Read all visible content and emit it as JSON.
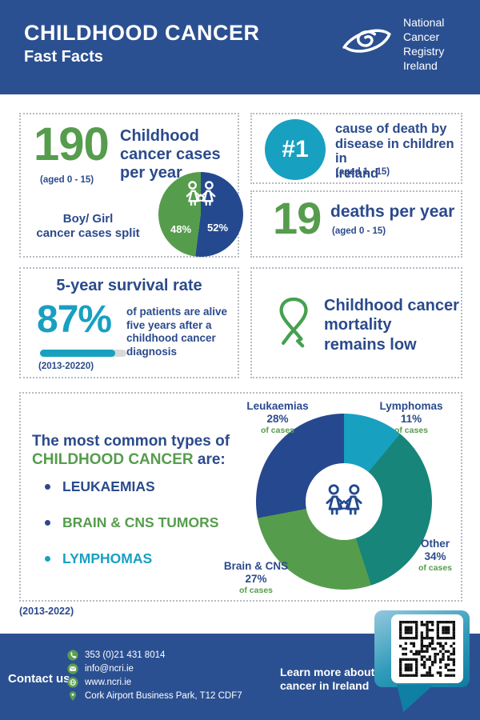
{
  "colors": {
    "header_bg": "#2b5091",
    "navy_text": "#2b4a8c",
    "green": "#569c4d",
    "teal": "#18a0c1",
    "dark_teal": "#17857a",
    "donut_navy": "#26488e",
    "progress_track": "#d9d9d9"
  },
  "header": {
    "title": "CHILDHOOD CANCER",
    "subtitle": "Fast Facts",
    "logo_text": "National\nCancer\nRegistry\nIreland"
  },
  "cases_box": {
    "value": "190",
    "age_note": "(aged 0 - 15)",
    "label": "Childhood\ncancer cases\nper year",
    "split_label": "Boy/ Girl\ncancer cases split"
  },
  "cause_box": {
    "rank": "#1",
    "label": "cause of death by\ndisease in children in\nIreland",
    "age_note": "(aged 1 - 15)"
  },
  "deaths_box": {
    "value": "19",
    "label": "deaths per year",
    "age_note": "(aged 0 - 15)"
  },
  "survival_box": {
    "title": "5-year survival rate",
    "value": "87%",
    "pct": 87,
    "description": "of patients are alive\nfive years after a\nchildhood cancer\ndiagnosis",
    "period": "(2013-20220)"
  },
  "mortality_box": {
    "label": "Childhood cancer\nmortality\nremains low"
  },
  "types_box": {
    "intro_line1": "The most common types of",
    "intro_highlight": "CHILDHOOD CANCER",
    "intro_suffix": " are:",
    "bullets": [
      {
        "label": "LEUKAEMIAS",
        "color": "#2b4a8c"
      },
      {
        "label": "BRAIN & CNS TUMORS",
        "color": "#569c4d"
      },
      {
        "label": "LYMPHOMAS",
        "color": "#18a0c1"
      }
    ],
    "period": "(2013-2022)"
  },
  "chart_data": [
    {
      "type": "pie",
      "title": "Boy/ Girl cancer cases split",
      "from_deg": 187.2,
      "slices": [
        {
          "pct": "48%",
          "value": 48,
          "color": "#569c4d"
        },
        {
          "pct": "52%",
          "value": 52,
          "color": "#24498f"
        }
      ]
    },
    {
      "type": "donut",
      "title": "The most common types of childhood cancer",
      "period": "(2013-2022)",
      "from_deg": 0,
      "direction": "clockwise-from-top",
      "center_icon": "children-icon",
      "slices": [
        {
          "label": "Lymphomas",
          "pct": "11%",
          "value": 11,
          "color": "#18a0c1",
          "note": "of cases"
        },
        {
          "label": "Other",
          "pct": "34%",
          "value": 34,
          "color": "#17857a",
          "note": "of cases"
        },
        {
          "label": "Brain & CNS",
          "pct": "27%",
          "value": 27,
          "color": "#569c4d",
          "note": "of cases"
        },
        {
          "label": "Leukaemias",
          "pct": "28%",
          "value": 28,
          "color": "#26488e",
          "note": "of cases"
        }
      ]
    }
  ],
  "footer": {
    "contact_label": "Contact us",
    "items": [
      {
        "icon": "phone-icon",
        "text": "353 (0)21 431 8014"
      },
      {
        "icon": "email-icon",
        "text": "info@ncri.ie"
      },
      {
        "icon": "globe-icon",
        "text": "www.ncri.ie"
      },
      {
        "icon": "location-icon",
        "text": "Cork Airport Business Park, T12 CDF7"
      }
    ],
    "learn_more": "Learn more about\ncancer in Ireland"
  }
}
